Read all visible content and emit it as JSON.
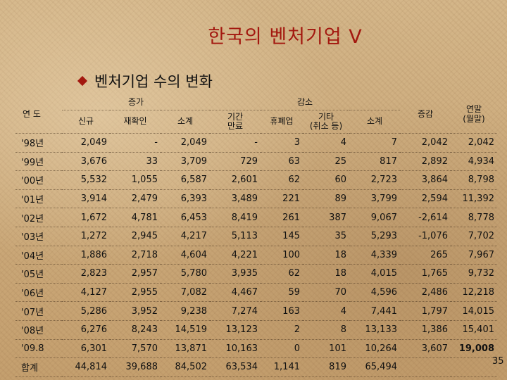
{
  "slide": {
    "title": "한국의 벤처기업 V",
    "subtitle": "벤처기업 수의 변화",
    "page_number": "35",
    "title_color": "#a3180f"
  },
  "table": {
    "header": {
      "year": "연 도",
      "increase_group": "증가",
      "decrease_group": "감소",
      "new": "신규",
      "reconfirm": "재확인",
      "increase_subtotal": "소계",
      "expired": "기간\n만료",
      "closed": "휴폐업",
      "other": "기타\n(취소 등)",
      "decrease_subtotal": "소계",
      "net_change": "증감",
      "year_end": "연말\n(월말)"
    },
    "rows": [
      {
        "year": "'98년",
        "new": "2,049",
        "reconfirm": "-",
        "inc_sub": "2,049",
        "expired": "-",
        "closed": "3",
        "other": "4",
        "dec_sub": "7",
        "net": "2,042",
        "total": "2,042"
      },
      {
        "year": "'99년",
        "new": "3,676",
        "reconfirm": "33",
        "inc_sub": "3,709",
        "expired": "729",
        "closed": "63",
        "other": "25",
        "dec_sub": "817",
        "net": "2,892",
        "total": "4,934"
      },
      {
        "year": "'00년",
        "new": "5,532",
        "reconfirm": "1,055",
        "inc_sub": "6,587",
        "expired": "2,601",
        "closed": "62",
        "other": "60",
        "dec_sub": "2,723",
        "net": "3,864",
        "total": "8,798"
      },
      {
        "year": "'01년",
        "new": "3,914",
        "reconfirm": "2,479",
        "inc_sub": "6,393",
        "expired": "3,489",
        "closed": "221",
        "other": "89",
        "dec_sub": "3,799",
        "net": "2,594",
        "total": "11,392"
      },
      {
        "year": "'02년",
        "new": "1,672",
        "reconfirm": "4,781",
        "inc_sub": "6,453",
        "expired": "8,419",
        "closed": "261",
        "other": "387",
        "dec_sub": "9,067",
        "net": "-2,614",
        "total": "8,778"
      },
      {
        "year": "'03년",
        "new": "1,272",
        "reconfirm": "2,945",
        "inc_sub": "4,217",
        "expired": "5,113",
        "closed": "145",
        "other": "35",
        "dec_sub": "5,293",
        "net": "-1,076",
        "total": "7,702"
      },
      {
        "year": "'04년",
        "new": "1,886",
        "reconfirm": "2,718",
        "inc_sub": "4,604",
        "expired": "4,221",
        "closed": "100",
        "other": "18",
        "dec_sub": "4,339",
        "net": "265",
        "total": "7,967"
      },
      {
        "year": "'05년",
        "new": "2,823",
        "reconfirm": "2,957",
        "inc_sub": "5,780",
        "expired": "3,935",
        "closed": "62",
        "other": "18",
        "dec_sub": "4,015",
        "net": "1,765",
        "total": "9,732"
      },
      {
        "year": "'06년",
        "new": "4,127",
        "reconfirm": "2,955",
        "inc_sub": "7,082",
        "expired": "4,467",
        "closed": "59",
        "other": "70",
        "dec_sub": "4,596",
        "net": "2,486",
        "total": "12,218"
      },
      {
        "year": "'07년",
        "new": "5,286",
        "reconfirm": "3,952",
        "inc_sub": "9,238",
        "expired": "7,274",
        "closed": "163",
        "other": "4",
        "dec_sub": "7,441",
        "net": "1,797",
        "total": "14,015"
      },
      {
        "year": "'08년",
        "new": "6,276",
        "reconfirm": "8,243",
        "inc_sub": "14,519",
        "expired": "13,123",
        "closed": "2",
        "other": "8",
        "dec_sub": "13,133",
        "net": "1,386",
        "total": "15,401"
      },
      {
        "year": "'09.8",
        "new": "6,301",
        "reconfirm": "7,570",
        "inc_sub": "13,871",
        "expired": "10,163",
        "closed": "0",
        "other": "101",
        "dec_sub": "10,264",
        "net": "3,607",
        "total": "19,008",
        "total_bold": true
      },
      {
        "year": "합계",
        "new": "44,814",
        "reconfirm": "39,688",
        "inc_sub": "84,502",
        "expired": "63,534",
        "closed": "1,141",
        "other": "819",
        "dec_sub": "65,494",
        "net": "",
        "total": ""
      }
    ]
  }
}
